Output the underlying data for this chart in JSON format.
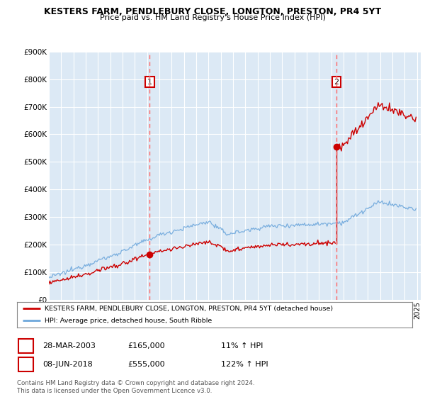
{
  "title": "KESTERS FARM, PENDLEBURY CLOSE, LONGTON, PRESTON, PR4 5YT",
  "subtitle": "Price paid vs. HM Land Registry's House Price Index (HPI)",
  "ylim": [
    0,
    900000
  ],
  "yticks": [
    0,
    100000,
    200000,
    300000,
    400000,
    500000,
    600000,
    700000,
    800000,
    900000
  ],
  "ytick_labels": [
    "£0",
    "£100K",
    "£200K",
    "£300K",
    "£400K",
    "£500K",
    "£600K",
    "£700K",
    "£800K",
    "£900K"
  ],
  "bg_color": "#dce9f5",
  "grid_color": "#ffffff",
  "sale1_date": 2003.22,
  "sale1_price": 165000,
  "sale2_date": 2018.44,
  "sale2_price": 555000,
  "legend_line1": "KESTERS FARM, PENDLEBURY CLOSE, LONGTON, PRESTON, PR4 5YT (detached house)",
  "legend_line2": "HPI: Average price, detached house, South Ribble",
  "red_color": "#cc0000",
  "blue_color": "#6fa8dc",
  "dashed_color": "#ff6666",
  "footer": "Contains HM Land Registry data © Crown copyright and database right 2024.\nThis data is licensed under the Open Government Licence v3.0."
}
